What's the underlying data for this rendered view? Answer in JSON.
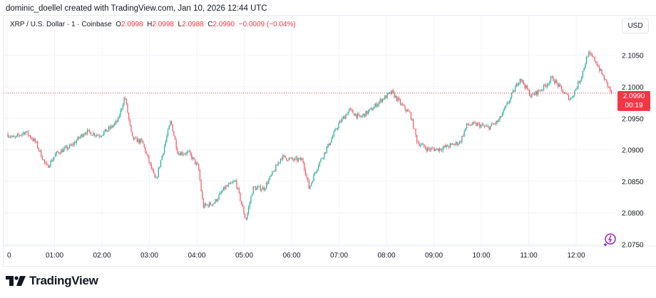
{
  "credit": "dominic_doellel created with TradingView.com, Jan 10, 2026 12:44 UTC",
  "legend": {
    "symbol": "XRP / U.S. Dollar · 1 · Coinbase",
    "o_label": "O",
    "o": "2.0998",
    "h_label": "H",
    "h": "2.0998",
    "l_label": "L",
    "l": "2.0988",
    "c_label": "C",
    "c": "2.0990",
    "change": "−0.0009 (−0.04%)"
  },
  "currency_button": "USD",
  "last_price": {
    "price": "2.0990",
    "countdown": "00:19"
  },
  "brand": "TradingView",
  "colors": {
    "up": "#22ab94",
    "down": "#f7525f",
    "last": "#f23645",
    "grid": "#f0f3fa"
  },
  "chart_data": {
    "type": "candlestick",
    "symbol": "XRPUSD",
    "interval": "1 minute",
    "ylim": [
      2.075,
      2.108
    ],
    "y_ticks": [
      "2.1050",
      "2.1000",
      "2.0950",
      "2.0900",
      "2.0850",
      "2.0800",
      "2.0750"
    ],
    "x_ticks": [
      "0",
      "01:00",
      "02:00",
      "03:00",
      "04:00",
      "05:00",
      "06:00",
      "07:00",
      "08:00",
      "09:00",
      "10:00",
      "11:00",
      "12:00"
    ],
    "xlim_minutes": [
      0,
      790
    ],
    "price_path": [
      [
        0,
        2.0925
      ],
      [
        9,
        2.0918
      ],
      [
        23,
        2.0929
      ],
      [
        36,
        2.0912
      ],
      [
        50,
        2.0872
      ],
      [
        63,
        2.0895
      ],
      [
        81,
        2.0906
      ],
      [
        99,
        2.0929
      ],
      [
        117,
        2.0923
      ],
      [
        131,
        2.0935
      ],
      [
        140,
        2.0946
      ],
      [
        149,
        2.0985
      ],
      [
        158,
        2.0918
      ],
      [
        171,
        2.0912
      ],
      [
        188,
        2.085
      ],
      [
        198,
        2.0901
      ],
      [
        207,
        2.0946
      ],
      [
        216,
        2.0895
      ],
      [
        230,
        2.0895
      ],
      [
        242,
        2.0872
      ],
      [
        248,
        2.081
      ],
      [
        262,
        2.0816
      ],
      [
        275,
        2.0839
      ],
      [
        289,
        2.085
      ],
      [
        302,
        2.0788
      ],
      [
        311,
        2.0839
      ],
      [
        325,
        2.0839
      ],
      [
        338,
        2.0867
      ],
      [
        347,
        2.0889
      ],
      [
        361,
        2.0884
      ],
      [
        374,
        2.0884
      ],
      [
        382,
        2.0839
      ],
      [
        392,
        2.0872
      ],
      [
        406,
        2.0906
      ],
      [
        419,
        2.094
      ],
      [
        433,
        2.0963
      ],
      [
        446,
        2.0951
      ],
      [
        460,
        2.0963
      ],
      [
        474,
        2.098
      ],
      [
        487,
        2.0991
      ],
      [
        501,
        2.0968
      ],
      [
        510,
        2.0957
      ],
      [
        519,
        2.0912
      ],
      [
        532,
        2.0901
      ],
      [
        546,
        2.0901
      ],
      [
        559,
        2.0906
      ],
      [
        573,
        2.0912
      ],
      [
        582,
        2.094
      ],
      [
        595,
        2.094
      ],
      [
        609,
        2.0935
      ],
      [
        622,
        2.0946
      ],
      [
        636,
        2.098
      ],
      [
        649,
        2.1014
      ],
      [
        663,
        2.0985
      ],
      [
        677,
        2.0997
      ],
      [
        690,
        2.1014
      ],
      [
        704,
        2.0991
      ],
      [
        713,
        2.098
      ],
      [
        726,
        2.1014
      ],
      [
        735,
        2.1053
      ],
      [
        744,
        2.1042
      ],
      [
        753,
        2.1019
      ],
      [
        765,
        2.099
      ]
    ],
    "last_price": 2.099
  }
}
